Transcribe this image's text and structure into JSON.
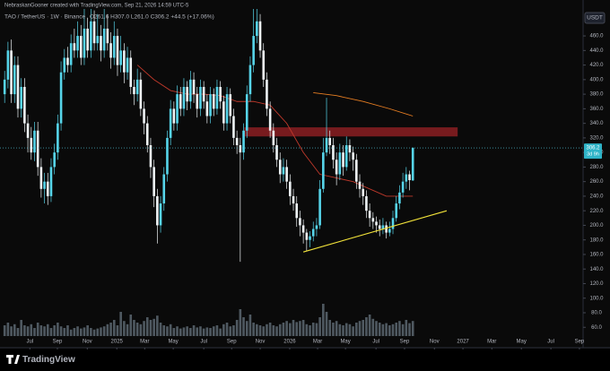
{
  "chart_data": {
    "type": "candlestick",
    "credit": "NebraskanGooner created with TradingView.com, Sep 21, 2026 14:59 UTC-5",
    "title": "TAO / TetherUS · 1W · Binance",
    "ohlc_legend": "O261.6 H307.0 L261.0 C306.2 +44.5 (+17.06%)",
    "currency": "USDT",
    "countdown": "3d 9h",
    "brand": "TradingView",
    "up_color": "#56d5ea",
    "down_color": "#eef3f5",
    "grid": false,
    "xlim": [
      -1.4,
      174.3
    ],
    "ylim": [
      48,
      497
    ],
    "yticks": [
      {
        "value": 60,
        "label": "60.0"
      },
      {
        "value": 80,
        "label": "80.0"
      },
      {
        "value": 100,
        "label": "100.0"
      },
      {
        "value": 120,
        "label": "120.0"
      },
      {
        "value": 140,
        "label": "140.0"
      },
      {
        "value": 160,
        "label": "160.0"
      },
      {
        "value": 180,
        "label": "180.0"
      },
      {
        "value": 200,
        "label": "200.0"
      },
      {
        "value": 220,
        "label": "220.0"
      },
      {
        "value": 240,
        "label": "240.0"
      },
      {
        "value": 260,
        "label": "260.0"
      },
      {
        "value": 280,
        "label": "280.0"
      },
      {
        "value": 300,
        "label": "300.0"
      },
      {
        "value": 320,
        "label": "320.0"
      },
      {
        "value": 340,
        "label": "340.0"
      },
      {
        "value": 360,
        "label": "360.0"
      },
      {
        "value": 380,
        "label": "380.0"
      },
      {
        "value": 400,
        "label": "400.0"
      },
      {
        "value": 420,
        "label": "420.0"
      },
      {
        "value": 440,
        "label": "440.0"
      },
      {
        "value": 460,
        "label": "460.0"
      }
    ],
    "xticks": [
      {
        "value": 7.6,
        "label": "Jul"
      },
      {
        "value": 15.9,
        "label": "Sep"
      },
      {
        "value": 24.9,
        "label": "Nov"
      },
      {
        "value": 33.8,
        "label": "2025"
      },
      {
        "value": 42.2,
        "label": "Mar"
      },
      {
        "value": 50.8,
        "label": "May"
      },
      {
        "value": 60,
        "label": "Jul"
      },
      {
        "value": 68.4,
        "label": "Sep"
      },
      {
        "value": 77,
        "label": "Nov"
      },
      {
        "value": 85.9,
        "label": "2026"
      },
      {
        "value": 94.3,
        "label": "Mar"
      },
      {
        "value": 102.7,
        "label": "May"
      },
      {
        "value": 111.9,
        "label": "Jul"
      },
      {
        "value": 120.5,
        "label": "Sep"
      },
      {
        "value": 129.5,
        "label": "Nov"
      },
      {
        "value": 138.1,
        "label": "2027"
      },
      {
        "value": 146.8,
        "label": "Mar"
      },
      {
        "value": 155.7,
        "label": "May"
      },
      {
        "value": 164.6,
        "label": "Jul"
      },
      {
        "value": 173.2,
        "label": "Sep"
      }
    ],
    "open": [
      380,
      400,
      440,
      380,
      420,
      360,
      390,
      340,
      320,
      300,
      330,
      280,
      250,
      260,
      240,
      280,
      300,
      340,
      410,
      430,
      420,
      450,
      440,
      460,
      430,
      470,
      440,
      480,
      450,
      460,
      440,
      470,
      450,
      430,
      460,
      420,
      440,
      410,
      430,
      390,
      380,
      400,
      360,
      340,
      310,
      280,
      240,
      200,
      230,
      270,
      320,
      360,
      340,
      380,
      360,
      390,
      370,
      400,
      380,
      360,
      390,
      370,
      350,
      380,
      360,
      390,
      370,
      340,
      380,
      350,
      320,
      310,
      300,
      330,
      380,
      420,
      460,
      480,
      440,
      400,
      360,
      330,
      310,
      290,
      270,
      280,
      260,
      240,
      230,
      210,
      200,
      190,
      180,
      185,
      195,
      200,
      250,
      300,
      320,
      310,
      290,
      270,
      300,
      280,
      310,
      300,
      290,
      260,
      250,
      240,
      220,
      210,
      205,
      200,
      195,
      200,
      190,
      195,
      210,
      230,
      245,
      260,
      270,
      261.6
    ],
    "high": [
      412,
      452,
      455,
      432,
      432,
      402,
      402,
      352,
      335,
      342,
      342,
      292,
      272,
      272,
      292,
      312,
      352,
      425,
      442,
      445,
      462,
      470,
      480,
      475,
      500,
      485,
      510,
      495,
      490,
      475,
      505,
      490,
      465,
      480,
      470,
      460,
      450,
      445,
      440,
      400,
      415,
      410,
      370,
      350,
      320,
      290,
      250,
      240,
      280,
      330,
      372,
      370,
      392,
      390,
      402,
      398,
      412,
      410,
      390,
      400,
      398,
      380,
      390,
      388,
      400,
      398,
      378,
      390,
      388,
      360,
      330,
      320,
      340,
      392,
      432,
      520,
      510,
      490,
      450,
      410,
      370,
      340,
      320,
      300,
      292,
      290,
      270,
      250,
      240,
      220,
      208,
      195,
      192,
      205,
      210,
      262,
      320,
      375,
      330,
      320,
      300,
      312,
      310,
      322,
      318,
      308,
      298,
      270,
      258,
      248,
      230,
      218,
      212,
      208,
      210,
      205,
      205,
      220,
      240,
      255,
      272,
      280,
      275,
      307
    ],
    "low": [
      368,
      388,
      368,
      368,
      348,
      348,
      328,
      300,
      290,
      288,
      268,
      238,
      230,
      228,
      232,
      270,
      290,
      330,
      400,
      410,
      410,
      430,
      430,
      420,
      420,
      430,
      430,
      440,
      440,
      425,
      430,
      440,
      415,
      420,
      405,
      410,
      395,
      400,
      380,
      365,
      370,
      350,
      325,
      300,
      265,
      225,
      175,
      190,
      220,
      260,
      310,
      330,
      330,
      350,
      350,
      358,
      360,
      368,
      348,
      350,
      360,
      340,
      340,
      350,
      352,
      360,
      330,
      330,
      340,
      310,
      298,
      150,
      290,
      320,
      370,
      410,
      450,
      430,
      390,
      350,
      320,
      300,
      280,
      258,
      260,
      250,
      228,
      220,
      198,
      185,
      175,
      165,
      170,
      178,
      185,
      195,
      245,
      295,
      298,
      278,
      255,
      262,
      268,
      275,
      288,
      275,
      250,
      238,
      228,
      210,
      198,
      195,
      190,
      185,
      188,
      182,
      185,
      188,
      205,
      222,
      238,
      250,
      248,
      261
    ],
    "close": [
      400,
      440,
      380,
      420,
      360,
      390,
      340,
      320,
      300,
      330,
      280,
      250,
      260,
      240,
      280,
      300,
      340,
      410,
      430,
      420,
      450,
      440,
      460,
      430,
      470,
      440,
      480,
      450,
      460,
      440,
      470,
      450,
      430,
      460,
      420,
      440,
      410,
      430,
      390,
      380,
      400,
      360,
      340,
      310,
      280,
      240,
      200,
      230,
      270,
      320,
      360,
      340,
      380,
      360,
      390,
      370,
      400,
      380,
      360,
      390,
      370,
      350,
      380,
      360,
      390,
      370,
      340,
      380,
      350,
      320,
      310,
      300,
      330,
      380,
      420,
      460,
      480,
      440,
      400,
      360,
      330,
      310,
      290,
      270,
      280,
      260,
      240,
      230,
      210,
      200,
      190,
      180,
      185,
      195,
      200,
      250,
      300,
      320,
      310,
      290,
      270,
      300,
      280,
      310,
      300,
      290,
      260,
      250,
      240,
      220,
      210,
      205,
      200,
      195,
      200,
      190,
      195,
      210,
      230,
      245,
      260,
      270,
      262,
      306.2
    ],
    "volume": [
      20,
      25,
      18,
      22,
      15,
      30,
      20,
      18,
      22,
      15,
      25,
      20,
      18,
      22,
      15,
      20,
      25,
      18,
      15,
      20,
      12,
      15,
      18,
      14,
      16,
      20,
      15,
      12,
      14,
      16,
      18,
      22,
      25,
      30,
      20,
      45,
      28,
      22,
      40,
      30,
      25,
      22,
      28,
      35,
      30,
      32,
      38,
      25,
      20,
      18,
      22,
      15,
      18,
      14,
      16,
      18,
      15,
      20,
      16,
      18,
      14,
      16,
      15,
      18,
      20,
      14,
      22,
      25,
      18,
      20,
      30,
      50,
      35,
      28,
      40,
      25,
      22,
      20,
      18,
      22,
      25,
      20,
      18,
      22,
      25,
      28,
      24,
      30,
      26,
      28,
      30,
      22,
      20,
      25,
      24,
      35,
      60,
      45,
      30,
      25,
      28,
      22,
      20,
      24,
      22,
      18,
      25,
      28,
      30,
      35,
      40,
      32,
      28,
      25,
      22,
      24,
      20,
      22,
      25,
      28,
      22,
      30,
      24,
      28
    ],
    "volume_lim": [
      0,
      100
    ],
    "volume_color": "#6c7a86",
    "lines": [
      {
        "color": "#c0392b",
        "x": [
          40,
          45,
          50,
          55,
          60,
          65,
          70,
          75,
          80,
          85,
          90,
          95,
          100,
          105,
          110,
          115,
          120,
          123
        ],
        "values": [
          420,
          400,
          385,
          380,
          380,
          378,
          370,
          370,
          365,
          340,
          300,
          270,
          265,
          260,
          250,
          240,
          240,
          240
        ]
      },
      {
        "color": "#e67e22",
        "x": [
          93,
          100,
          108,
          116,
          123
        ],
        "values": [
          382,
          378,
          370,
          360,
          350
        ]
      }
    ],
    "trendline": {
      "color": "#f2e33a",
      "x": [
        90,
        133.2
      ],
      "values": [
        163.4,
        220
      ]
    },
    "zone": {
      "color": "#8b1e22",
      "x": [
        72.2,
        136.5
      ],
      "range": [
        322,
        334.5
      ]
    }
  }
}
